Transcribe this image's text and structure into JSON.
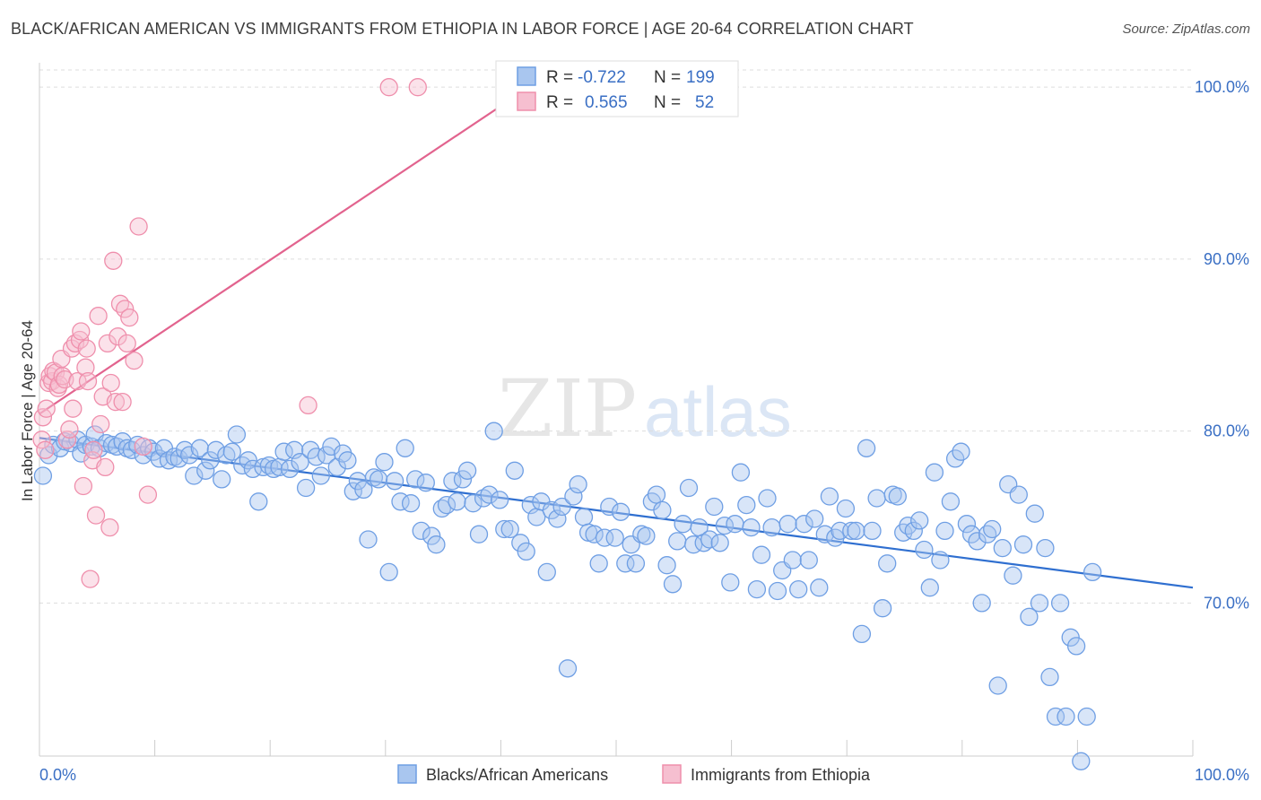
{
  "header": {
    "title": "BLACK/AFRICAN AMERICAN VS IMMIGRANTS FROM ETHIOPIA IN LABOR FORCE | AGE 20-64 CORRELATION CHART",
    "source": "Source: ZipAtlas.com"
  },
  "watermark": {
    "zip": "ZIP",
    "atlas": "atlas"
  },
  "chart_data": {
    "type": "scatter",
    "title": "BLACK/AFRICAN AMERICAN VS IMMIGRANTS FROM ETHIOPIA IN LABOR FORCE | AGE 20-64 CORRELATION CHART",
    "ylabel": "In Labor Force | Age 20-64",
    "xlabel": "",
    "x_range": [
      0,
      100
    ],
    "y_range": [
      60,
      100
    ],
    "x_tick_labels": {
      "min": "0.0%",
      "max": "100.0%"
    },
    "y_ticks": [
      {
        "value": 70,
        "label": "70.0%"
      },
      {
        "value": 80,
        "label": "80.0%"
      },
      {
        "value": 90,
        "label": "90.0%"
      },
      {
        "value": 100,
        "label": "100.0%"
      }
    ],
    "legend_position": "bottom-center",
    "stats_box_position": "top-center",
    "grid": true,
    "series": [
      {
        "name": "Blacks/African Americans",
        "color": "#6f9fe4",
        "fill": "#a9c6ef",
        "line_color": "#2f6fd0",
        "R": "-0.722",
        "N": "199",
        "trend": {
          "x": [
            0,
            100
          ],
          "y": [
            79.6,
            70.9
          ]
        },
        "points": [
          [
            0.3,
            77.4
          ],
          [
            0.8,
            78.6
          ],
          [
            1.2,
            79.2
          ],
          [
            1.8,
            79.0
          ],
          [
            2.2,
            79.4
          ],
          [
            2.7,
            79.3
          ],
          [
            3.3,
            79.5
          ],
          [
            3.6,
            78.7
          ],
          [
            4.0,
            79.2
          ],
          [
            4.5,
            79.1
          ],
          [
            4.8,
            79.8
          ],
          [
            5.2,
            79.0
          ],
          [
            5.8,
            79.3
          ],
          [
            6.3,
            79.2
          ],
          [
            6.7,
            79.1
          ],
          [
            7.2,
            79.4
          ],
          [
            7.6,
            79.0
          ],
          [
            8.0,
            78.9
          ],
          [
            8.5,
            79.2
          ],
          [
            9.0,
            78.6
          ],
          [
            9.5,
            79.0
          ],
          [
            9.9,
            78.8
          ],
          [
            10.4,
            78.4
          ],
          [
            10.8,
            79.0
          ],
          [
            11.2,
            78.3
          ],
          [
            11.7,
            78.5
          ],
          [
            12.1,
            78.4
          ],
          [
            12.6,
            78.9
          ],
          [
            13.0,
            78.6
          ],
          [
            13.4,
            77.4
          ],
          [
            13.9,
            79.0
          ],
          [
            14.4,
            77.7
          ],
          [
            14.8,
            78.3
          ],
          [
            15.3,
            78.9
          ],
          [
            15.8,
            77.2
          ],
          [
            16.2,
            78.6
          ],
          [
            16.7,
            78.8
          ],
          [
            17.1,
            79.8
          ],
          [
            17.6,
            78.0
          ],
          [
            18.1,
            78.3
          ],
          [
            18.5,
            77.8
          ],
          [
            19.0,
            75.9
          ],
          [
            19.4,
            77.9
          ],
          [
            19.9,
            78.0
          ],
          [
            20.3,
            77.8
          ],
          [
            20.8,
            77.9
          ],
          [
            21.2,
            78.8
          ],
          [
            21.7,
            77.8
          ],
          [
            22.1,
            78.9
          ],
          [
            22.6,
            78.2
          ],
          [
            23.1,
            76.7
          ],
          [
            23.5,
            78.9
          ],
          [
            24.0,
            78.5
          ],
          [
            24.4,
            77.4
          ],
          [
            24.9,
            78.6
          ],
          [
            25.3,
            79.1
          ],
          [
            25.8,
            77.9
          ],
          [
            26.3,
            78.7
          ],
          [
            26.7,
            78.3
          ],
          [
            27.2,
            76.5
          ],
          [
            27.6,
            77.1
          ],
          [
            28.1,
            76.6
          ],
          [
            28.5,
            73.7
          ],
          [
            29.0,
            77.3
          ],
          [
            29.4,
            77.2
          ],
          [
            29.9,
            78.2
          ],
          [
            30.3,
            71.8
          ],
          [
            30.8,
            77.1
          ],
          [
            31.3,
            75.9
          ],
          [
            31.7,
            79.0
          ],
          [
            32.2,
            75.8
          ],
          [
            32.6,
            77.2
          ],
          [
            33.1,
            74.2
          ],
          [
            33.5,
            77.0
          ],
          [
            34.0,
            73.9
          ],
          [
            34.4,
            73.4
          ],
          [
            34.9,
            75.5
          ],
          [
            35.3,
            75.7
          ],
          [
            35.8,
            77.1
          ],
          [
            36.2,
            75.9
          ],
          [
            36.7,
            77.2
          ],
          [
            37.1,
            77.7
          ],
          [
            37.6,
            75.8
          ],
          [
            38.1,
            74.0
          ],
          [
            38.5,
            76.1
          ],
          [
            39.0,
            76.3
          ],
          [
            39.4,
            80.0
          ],
          [
            39.9,
            76.0
          ],
          [
            40.3,
            74.3
          ],
          [
            40.8,
            74.3
          ],
          [
            41.2,
            77.7
          ],
          [
            41.7,
            73.5
          ],
          [
            42.2,
            73.0
          ],
          [
            42.6,
            75.7
          ],
          [
            43.1,
            75.0
          ],
          [
            43.5,
            75.9
          ],
          [
            44.0,
            71.8
          ],
          [
            44.4,
            75.4
          ],
          [
            44.9,
            74.9
          ],
          [
            45.3,
            75.6
          ],
          [
            45.8,
            66.2
          ],
          [
            46.3,
            76.2
          ],
          [
            46.7,
            76.9
          ],
          [
            47.2,
            75.0
          ],
          [
            47.6,
            74.1
          ],
          [
            48.1,
            74.0
          ],
          [
            48.5,
            72.3
          ],
          [
            49.0,
            73.8
          ],
          [
            49.4,
            75.6
          ],
          [
            49.9,
            73.8
          ],
          [
            50.4,
            75.3
          ],
          [
            50.8,
            72.3
          ],
          [
            51.3,
            73.4
          ],
          [
            51.7,
            72.3
          ],
          [
            52.2,
            74.0
          ],
          [
            52.6,
            73.9
          ],
          [
            53.1,
            75.9
          ],
          [
            53.5,
            76.3
          ],
          [
            54.0,
            75.4
          ],
          [
            54.4,
            72.2
          ],
          [
            54.9,
            71.1
          ],
          [
            55.3,
            73.6
          ],
          [
            55.8,
            74.6
          ],
          [
            56.3,
            76.7
          ],
          [
            56.7,
            73.4
          ],
          [
            57.2,
            74.4
          ],
          [
            57.6,
            73.5
          ],
          [
            58.1,
            73.7
          ],
          [
            58.5,
            75.6
          ],
          [
            59.0,
            73.5
          ],
          [
            59.4,
            74.5
          ],
          [
            59.9,
            71.2
          ],
          [
            60.3,
            74.6
          ],
          [
            60.8,
            77.6
          ],
          [
            61.3,
            75.7
          ],
          [
            61.7,
            74.4
          ],
          [
            62.2,
            70.8
          ],
          [
            62.6,
            72.8
          ],
          [
            63.1,
            76.1
          ],
          [
            63.5,
            74.4
          ],
          [
            64.0,
            70.7
          ],
          [
            64.4,
            71.9
          ],
          [
            64.9,
            74.6
          ],
          [
            65.3,
            72.5
          ],
          [
            65.8,
            70.8
          ],
          [
            66.3,
            74.6
          ],
          [
            66.7,
            72.5
          ],
          [
            67.2,
            74.9
          ],
          [
            67.6,
            70.9
          ],
          [
            68.1,
            74.0
          ],
          [
            68.5,
            76.2
          ],
          [
            69.0,
            73.8
          ],
          [
            69.4,
            74.2
          ],
          [
            69.9,
            75.5
          ],
          [
            70.4,
            74.2
          ],
          [
            70.8,
            74.2
          ],
          [
            71.3,
            68.2
          ],
          [
            71.7,
            79.0
          ],
          [
            72.2,
            74.2
          ],
          [
            72.6,
            76.1
          ],
          [
            73.1,
            69.7
          ],
          [
            73.5,
            72.3
          ],
          [
            74.0,
            76.3
          ],
          [
            74.4,
            76.2
          ],
          [
            74.9,
            74.1
          ],
          [
            75.3,
            74.5
          ],
          [
            75.8,
            74.2
          ],
          [
            76.3,
            74.8
          ],
          [
            76.7,
            73.1
          ],
          [
            77.2,
            70.9
          ],
          [
            77.6,
            77.6
          ],
          [
            78.1,
            72.5
          ],
          [
            78.5,
            74.2
          ],
          [
            79.0,
            75.9
          ],
          [
            79.4,
            78.4
          ],
          [
            79.9,
            78.8
          ],
          [
            80.4,
            74.6
          ],
          [
            80.8,
            74.0
          ],
          [
            81.3,
            73.6
          ],
          [
            81.7,
            70.0
          ],
          [
            82.2,
            74.0
          ],
          [
            82.6,
            74.3
          ],
          [
            83.1,
            65.2
          ],
          [
            83.5,
            73.2
          ],
          [
            84.0,
            76.9
          ],
          [
            84.4,
            71.6
          ],
          [
            84.9,
            76.3
          ],
          [
            85.3,
            73.4
          ],
          [
            85.8,
            69.2
          ],
          [
            86.3,
            75.2
          ],
          [
            86.7,
            70.0
          ],
          [
            87.2,
            73.2
          ],
          [
            87.6,
            65.7
          ],
          [
            88.1,
            63.4
          ],
          [
            88.5,
            70.0
          ],
          [
            89.0,
            63.4
          ],
          [
            89.4,
            68.0
          ],
          [
            89.9,
            67.5
          ],
          [
            90.3,
            60.8
          ],
          [
            90.8,
            63.4
          ],
          [
            91.3,
            71.8
          ]
        ]
      },
      {
        "name": "Immigrants from Ethiopia",
        "color": "#ef8fac",
        "fill": "#f6bfd0",
        "line_color": "#e2638e",
        "R": "0.565",
        "N": "52",
        "trend": {
          "x": [
            0,
            40
          ],
          "y": [
            81.0,
            98.9
          ]
        },
        "points": [
          [
            0.2,
            79.5
          ],
          [
            0.3,
            80.8
          ],
          [
            0.5,
            78.9
          ],
          [
            0.6,
            81.3
          ],
          [
            0.8,
            82.8
          ],
          [
            0.9,
            83.2
          ],
          [
            1.1,
            82.9
          ],
          [
            1.2,
            83.5
          ],
          [
            1.4,
            83.4
          ],
          [
            1.6,
            82.5
          ],
          [
            1.7,
            82.7
          ],
          [
            1.9,
            84.2
          ],
          [
            2.0,
            83.2
          ],
          [
            2.2,
            83.0
          ],
          [
            2.4,
            79.5
          ],
          [
            2.6,
            80.1
          ],
          [
            2.8,
            84.8
          ],
          [
            2.9,
            81.3
          ],
          [
            3.1,
            85.1
          ],
          [
            3.3,
            82.9
          ],
          [
            3.5,
            85.3
          ],
          [
            3.6,
            85.8
          ],
          [
            3.8,
            76.8
          ],
          [
            4.0,
            83.7
          ],
          [
            4.1,
            84.8
          ],
          [
            4.2,
            82.9
          ],
          [
            4.4,
            71.4
          ],
          [
            4.6,
            78.3
          ],
          [
            4.7,
            78.9
          ],
          [
            4.9,
            75.1
          ],
          [
            5.1,
            86.7
          ],
          [
            5.3,
            80.4
          ],
          [
            5.5,
            82.0
          ],
          [
            5.7,
            77.9
          ],
          [
            5.9,
            85.1
          ],
          [
            6.1,
            74.4
          ],
          [
            6.2,
            82.8
          ],
          [
            6.4,
            89.9
          ],
          [
            6.6,
            81.7
          ],
          [
            6.8,
            85.5
          ],
          [
            7.0,
            87.4
          ],
          [
            7.2,
            81.7
          ],
          [
            7.4,
            87.1
          ],
          [
            7.6,
            85.1
          ],
          [
            7.8,
            86.6
          ],
          [
            8.2,
            84.1
          ],
          [
            8.6,
            91.9
          ],
          [
            9.0,
            79.1
          ],
          [
            9.4,
            76.3
          ],
          [
            23.3,
            81.5
          ],
          [
            30.3,
            100.0
          ],
          [
            32.8,
            100.0
          ]
        ]
      }
    ]
  }
}
